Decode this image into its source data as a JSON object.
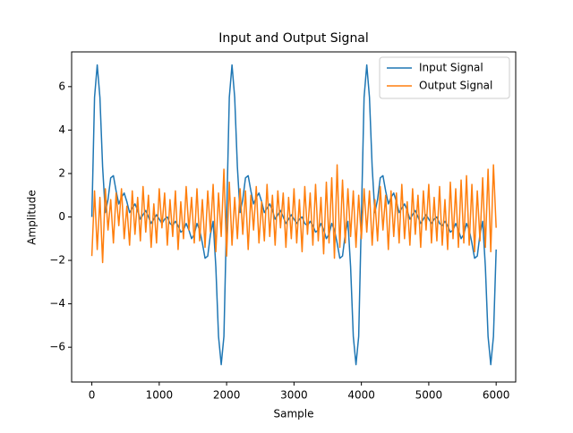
{
  "chart_data": {
    "type": "line",
    "title": "Input and Output Signal",
    "x_label": "Sample",
    "y_label": "Amplitude",
    "x": [
      0,
      40,
      80,
      120,
      160,
      200,
      240,
      280,
      320,
      360,
      400,
      440,
      480,
      520,
      560,
      600,
      640,
      680,
      720,
      760,
      800,
      840,
      880,
      920,
      960,
      1000,
      1040,
      1080,
      1120,
      1160,
      1200,
      1240,
      1280,
      1320,
      1360,
      1400,
      1440,
      1480,
      1520,
      1560,
      1600,
      1640,
      1680,
      1720,
      1760,
      1800,
      1840,
      1880,
      1920,
      1960,
      2000,
      2040,
      2080,
      2120,
      2160,
      2200,
      2240,
      2280,
      2320,
      2360,
      2400,
      2440,
      2480,
      2520,
      2560,
      2600,
      2640,
      2680,
      2720,
      2760,
      2800,
      2840,
      2880,
      2920,
      2960,
      3000,
      3040,
      3080,
      3120,
      3160,
      3200,
      3240,
      3280,
      3320,
      3360,
      3400,
      3440,
      3480,
      3520,
      3560,
      3600,
      3640,
      3680,
      3720,
      3760,
      3800,
      3840,
      3880,
      3920,
      3960,
      4000,
      4040,
      4080,
      4120,
      4160,
      4200,
      4240,
      4280,
      4320,
      4360,
      4400,
      4440,
      4480,
      4520,
      4560,
      4600,
      4640,
      4680,
      4720,
      4760,
      4800,
      4840,
      4880,
      4920,
      4960,
      5000,
      5040,
      5080,
      5120,
      5160,
      5200,
      5240,
      5280,
      5320,
      5360,
      5400,
      5440,
      5480,
      5520,
      5560,
      5600,
      5640,
      5680,
      5720,
      5760,
      5800,
      5840,
      5880,
      5920,
      5960,
      6000
    ],
    "series": [
      {
        "name": "Input Signal",
        "color": "#1f77b4",
        "values": [
          0.0,
          5.5,
          7.0,
          5.5,
          2.3,
          0.2,
          0.8,
          1.8,
          1.9,
          1.2,
          0.6,
          0.9,
          1.1,
          0.7,
          0.2,
          0.4,
          0.6,
          0.3,
          -0.1,
          0.1,
          0.3,
          0.0,
          -0.3,
          -0.1,
          0.1,
          -0.1,
          -0.3,
          -0.1,
          0.0,
          -0.3,
          -0.4,
          -0.2,
          -0.4,
          -0.7,
          -0.6,
          -0.3,
          -0.6,
          -1.0,
          -0.8,
          -0.3,
          -0.6,
          -1.2,
          -1.9,
          -1.8,
          -0.8,
          -0.2,
          -2.3,
          -5.5,
          -6.8,
          -5.5,
          0.0,
          5.5,
          7.0,
          5.5,
          2.3,
          0.2,
          0.8,
          1.8,
          1.9,
          1.2,
          0.6,
          0.9,
          1.1,
          0.7,
          0.2,
          0.4,
          0.6,
          0.3,
          -0.1,
          0.1,
          0.3,
          0.0,
          -0.3,
          -0.1,
          0.1,
          -0.1,
          -0.3,
          -0.1,
          0.0,
          -0.3,
          -0.4,
          -0.2,
          -0.4,
          -0.7,
          -0.6,
          -0.3,
          -0.6,
          -1.0,
          -0.8,
          -0.3,
          -0.6,
          -1.2,
          -1.9,
          -1.8,
          -0.8,
          -0.2,
          -2.3,
          -5.5,
          -6.8,
          -5.5,
          0.0,
          5.5,
          7.0,
          5.5,
          2.3,
          0.2,
          0.8,
          1.8,
          1.9,
          1.2,
          0.6,
          0.9,
          1.1,
          0.7,
          0.2,
          0.4,
          0.6,
          0.3,
          -0.1,
          0.1,
          0.3,
          0.0,
          -0.3,
          -0.1,
          0.1,
          -0.1,
          -0.3,
          -0.1,
          0.0,
          -0.3,
          -0.4,
          -0.2,
          -0.4,
          -0.7,
          -0.6,
          -0.3,
          -0.6,
          -1.0,
          -0.8,
          -0.3,
          -0.6,
          -1.2,
          -1.9,
          -1.8,
          -0.8,
          -0.2,
          -2.3,
          -5.5,
          -6.8,
          -5.5,
          -1.5
        ]
      },
      {
        "name": "Output Signal",
        "color": "#ff7f0e",
        "values": [
          -1.8,
          1.2,
          -1.5,
          0.9,
          -2.1,
          1.3,
          -0.6,
          0.8,
          -1.2,
          1.1,
          -0.4,
          1.3,
          -1.0,
          0.5,
          -1.3,
          1.2,
          -0.8,
          0.9,
          -1.1,
          1.4,
          -0.7,
          1.0,
          -1.4,
          0.6,
          -1.2,
          1.3,
          -0.5,
          1.1,
          -1.3,
          0.8,
          -0.9,
          1.2,
          -1.5,
          0.7,
          -1.0,
          1.4,
          -0.6,
          0.9,
          -1.2,
          1.3,
          -1.1,
          0.8,
          -1.4,
          1.2,
          -0.7,
          1.5,
          -1.6,
          1.1,
          -0.9,
          2.2,
          -1.8,
          1.6,
          -1.3,
          0.9,
          -1.0,
          1.3,
          -0.8,
          1.2,
          -1.5,
          1.0,
          -0.6,
          1.4,
          -1.2,
          0.7,
          -1.1,
          1.5,
          -0.9,
          1.0,
          -1.3,
          1.2,
          -0.5,
          1.1,
          -1.4,
          0.9,
          -1.0,
          1.3,
          -1.2,
          0.8,
          -1.6,
          1.4,
          -0.8,
          1.1,
          -1.3,
          1.5,
          -1.1,
          0.9,
          -1.7,
          1.6,
          -1.2,
          1.8,
          -1.9,
          2.4,
          -1.4,
          1.7,
          -1.2,
          1.3,
          -0.9,
          1.2,
          -1.4,
          1.0,
          -1.0,
          1.3,
          -0.7,
          1.2,
          -1.3,
          0.8,
          -1.1,
          1.4,
          -0.6,
          1.0,
          -1.5,
          1.2,
          -0.9,
          1.1,
          -1.2,
          1.5,
          -1.0,
          0.7,
          -1.3,
          1.3,
          -0.8,
          1.0,
          -1.4,
          1.2,
          -0.6,
          1.5,
          -1.2,
          0.9,
          -1.1,
          1.4,
          -1.3,
          0.8,
          -1.5,
          1.6,
          -1.0,
          1.3,
          -1.4,
          1.7,
          -1.2,
          1.9,
          -1.3,
          1.5,
          -1.6,
          1.2,
          -1.1,
          1.8,
          -1.4,
          2.2,
          -1.6,
          2.4,
          -0.5
        ]
      }
    ],
    "xlim": [
      -300,
      6290
    ],
    "xticks": [
      0,
      1000,
      2000,
      3000,
      4000,
      5000,
      6000
    ],
    "ylim": [
      -7.6,
      7.6
    ],
    "yticks": [
      {
        "value": -6,
        "label": "−6"
      },
      {
        "value": -4,
        "label": "−4"
      },
      {
        "value": -2,
        "label": "−2"
      },
      0,
      2,
      4,
      6
    ],
    "legend": "upper right",
    "grid": false
  }
}
